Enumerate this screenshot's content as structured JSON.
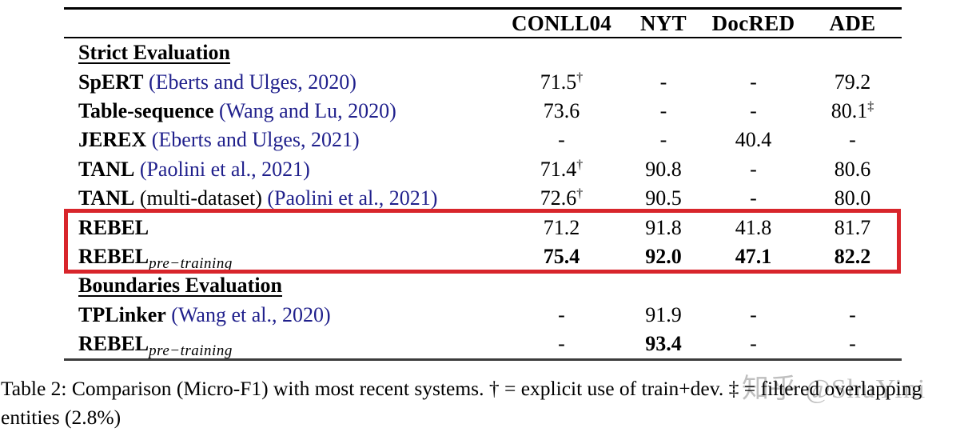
{
  "colors": {
    "citation_blue": "#20208c",
    "highlight_red": "#d8252b",
    "watermark_gray": "#b5b5b5",
    "text": "#000000",
    "background": "#ffffff"
  },
  "table": {
    "columns": [
      "CONLL04",
      "NYT",
      "DocRED",
      "ADE"
    ],
    "rows": [
      {
        "type": "section",
        "label": "Strict Evaluation"
      },
      {
        "type": "data",
        "model": "SpERT",
        "cite": "(Eberts and Ulges, 2020)",
        "values": [
          "71.5",
          "-",
          "-",
          "79.2"
        ],
        "sups": [
          "†",
          "",
          "",
          ""
        ],
        "bold": [
          false,
          false,
          false,
          false
        ]
      },
      {
        "type": "data",
        "model": "Table-sequence",
        "cite": "(Wang and Lu, 2020)",
        "values": [
          "73.6",
          "-",
          "-",
          "80.1"
        ],
        "sups": [
          "",
          "",
          "",
          "‡"
        ],
        "bold": [
          false,
          false,
          false,
          false
        ]
      },
      {
        "type": "data",
        "model": "JEREX",
        "cite": "(Eberts and Ulges, 2021)",
        "values": [
          "-",
          "-",
          "40.4",
          "-"
        ],
        "sups": [
          "",
          "",
          "",
          ""
        ],
        "bold": [
          false,
          false,
          false,
          false
        ]
      },
      {
        "type": "data",
        "model": "TANL",
        "cite": "(Paolini et al., 2021)",
        "values": [
          "71.4",
          "90.8",
          "-",
          "80.6"
        ],
        "sups": [
          "†",
          "",
          "",
          ""
        ],
        "bold": [
          false,
          false,
          false,
          false
        ]
      },
      {
        "type": "data",
        "model": "TANL",
        "note": " (multi-dataset)",
        "cite": "(Paolini et al., 2021)",
        "values": [
          "72.6",
          "90.5",
          "-",
          "80.0"
        ],
        "sups": [
          "†",
          "",
          "",
          ""
        ],
        "bold": [
          false,
          false,
          false,
          false
        ]
      },
      {
        "type": "data",
        "model": "REBEL",
        "cite": "",
        "values": [
          "71.2",
          "91.8",
          "41.8",
          "81.7"
        ],
        "sups": [
          "",
          "",
          "",
          ""
        ],
        "bold": [
          false,
          false,
          false,
          false
        ]
      },
      {
        "type": "data",
        "model": "REBEL",
        "subscript": "pre−training",
        "cite": "",
        "values": [
          "75.4",
          "92.0",
          "47.1",
          "82.2"
        ],
        "sups": [
          "",
          "",
          "",
          ""
        ],
        "bold": [
          true,
          true,
          true,
          true
        ]
      },
      {
        "type": "section",
        "label": "Boundaries Evaluation"
      },
      {
        "type": "data",
        "model": "TPLinker",
        "cite": "(Wang et al., 2020)",
        "values": [
          "-",
          "91.9",
          "-",
          "-"
        ],
        "sups": [
          "",
          "",
          "",
          ""
        ],
        "bold": [
          false,
          false,
          false,
          false
        ]
      },
      {
        "type": "data",
        "model": "REBEL",
        "subscript": "pre−training",
        "cite": "",
        "values": [
          "-",
          "93.4",
          "-",
          "-"
        ],
        "sups": [
          "",
          "",
          "",
          ""
        ],
        "bold": [
          false,
          true,
          false,
          false
        ]
      }
    ]
  },
  "caption": {
    "line1": "Table 2: Comparison (Micro-F1) with most recent systems. † = explicit use of train+dev. ‡ = filtered overlapping",
    "line2": "entities (2.8%)"
  },
  "watermark": {
    "text": "知乎 @ShuYini"
  }
}
